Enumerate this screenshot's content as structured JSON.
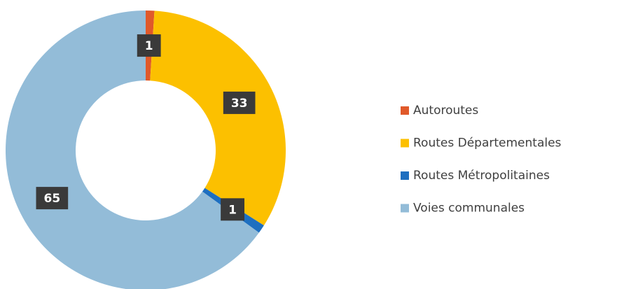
{
  "chart_data": {
    "type": "donut",
    "categories": [
      "Autoroutes",
      "Routes Départementales",
      "Routes Métropolitaines",
      "Voies communales"
    ],
    "values": [
      1,
      33,
      1,
      65
    ],
    "colors": [
      "#e0592a",
      "#fcc000",
      "#1e6fc0",
      "#93bcd8"
    ],
    "legend": "right"
  }
}
